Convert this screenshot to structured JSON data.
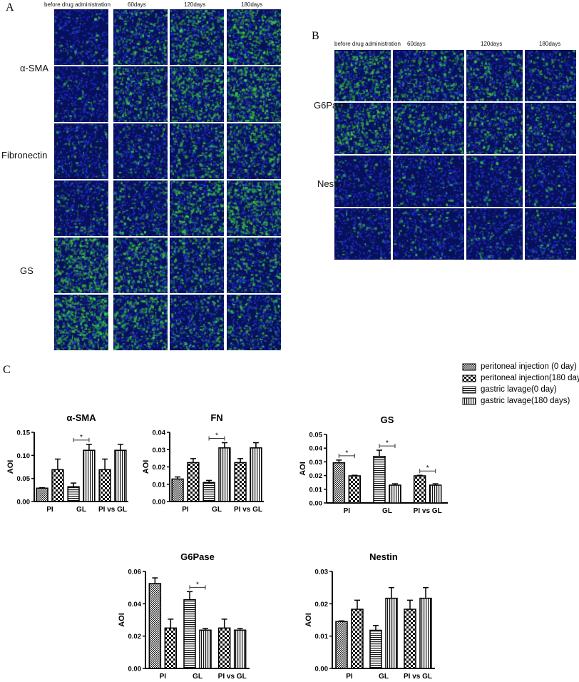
{
  "panelA": {
    "letter": "A",
    "columns": [
      "before drug administration",
      "60days",
      "120days",
      "180days"
    ],
    "rows": [
      "α-SMA",
      "Fibronectin",
      "GS"
    ],
    "green": [
      [
        0.1,
        0.4,
        0.6,
        0.7
      ],
      [
        0.1,
        0.45,
        0.65,
        0.75
      ],
      [
        0.15,
        0.2,
        0.45,
        0.5
      ],
      [
        0.2,
        0.3,
        0.6,
        0.8
      ],
      [
        0.85,
        0.6,
        0.45,
        0.4
      ],
      [
        0.9,
        0.6,
        0.35,
        0.4
      ]
    ]
  },
  "panelB": {
    "letter": "B",
    "columns": [
      "before drug administration",
      "60days",
      "120days",
      "180days"
    ],
    "rows": [
      "G6Pase",
      "Nestin"
    ],
    "green": [
      [
        0.6,
        0.4,
        0.4,
        0.25
      ],
      [
        0.6,
        0.4,
        0.35,
        0.25
      ],
      [
        0.1,
        0.12,
        0.12,
        0.12
      ],
      [
        0.1,
        0.12,
        0.12,
        0.12
      ]
    ]
  },
  "panelC": {
    "letter": "C"
  },
  "legend": [
    {
      "label": "peritoneal injection (0 day)",
      "pattern": "fine-check"
    },
    {
      "label": "peritoneal injection(180 days)",
      "pattern": "coarse-check"
    },
    {
      "label": "gastric lavage(0 day)",
      "pattern": "horizontal"
    },
    {
      "label": "gastric lavage(180 days)",
      "pattern": "vertical"
    }
  ],
  "chart_data": [
    {
      "type": "bar",
      "title": "α-SMA",
      "ylabel": "AOI",
      "ylim": [
        0,
        0.15
      ],
      "yticks": [
        "0.00",
        "0.05",
        "0.10",
        "0.15"
      ],
      "categories": [
        "PI",
        "GL",
        "PI vs GL"
      ],
      "groups": [
        [
          {
            "series": 0,
            "value": 0.029,
            "error": 0.001
          },
          {
            "series": 1,
            "value": 0.069,
            "error": 0.023
          }
        ],
        [
          {
            "series": 2,
            "value": 0.032,
            "error": 0.008
          },
          {
            "series": 3,
            "value": 0.111,
            "error": 0.013
          }
        ],
        [
          {
            "series": 1,
            "value": 0.069,
            "error": 0.023
          },
          {
            "series": 3,
            "value": 0.111,
            "error": 0.013
          }
        ]
      ],
      "significance": [
        {
          "group": 1,
          "label": "*"
        }
      ]
    },
    {
      "type": "bar",
      "title": "FN",
      "ylabel": "AOI",
      "ylim": [
        0,
        0.04
      ],
      "yticks": [
        "0.00",
        "0.01",
        "0.02",
        "0.03",
        "0.04"
      ],
      "categories": [
        "PI",
        "GL",
        "PI vs GL"
      ],
      "groups": [
        [
          {
            "series": 0,
            "value": 0.013,
            "error": 0.0012
          },
          {
            "series": 1,
            "value": 0.0225,
            "error": 0.0023
          }
        ],
        [
          {
            "series": 2,
            "value": 0.011,
            "error": 0.0012
          },
          {
            "series": 3,
            "value": 0.031,
            "error": 0.003
          }
        ],
        [
          {
            "series": 1,
            "value": 0.0225,
            "error": 0.0023
          },
          {
            "series": 3,
            "value": 0.031,
            "error": 0.003
          }
        ]
      ],
      "significance": [
        {
          "group": 1,
          "label": "*"
        }
      ]
    },
    {
      "type": "bar",
      "title": "GS",
      "ylabel": "AOI",
      "ylim": [
        0,
        0.05
      ],
      "yticks": [
        "0.00",
        "0.01",
        "0.02",
        "0.03",
        "0.04",
        "0.05"
      ],
      "categories": [
        "PI",
        "GL",
        "PI vs GL"
      ],
      "groups": [
        [
          {
            "series": 0,
            "value": 0.0293,
            "error": 0.002
          },
          {
            "series": 1,
            "value": 0.0198,
            "error": 0.0004
          }
        ],
        [
          {
            "series": 2,
            "value": 0.034,
            "error": 0.0045
          },
          {
            "series": 3,
            "value": 0.013,
            "error": 0.001
          }
        ],
        [
          {
            "series": 1,
            "value": 0.0198,
            "error": 0.0004
          },
          {
            "series": 3,
            "value": 0.013,
            "error": 0.001
          }
        ]
      ],
      "significance": [
        {
          "group": 0,
          "label": "*"
        },
        {
          "group": 1,
          "label": "*"
        },
        {
          "group": 2,
          "label": "*"
        }
      ]
    },
    {
      "type": "bar",
      "title": "G6Pase",
      "ylabel": "AOI",
      "ylim": [
        0,
        0.06
      ],
      "yticks": [
        "0.00",
        "0.02",
        "0.04",
        "0.06"
      ],
      "categories": [
        "PI",
        "GL",
        "PI vs GL"
      ],
      "groups": [
        [
          {
            "series": 0,
            "value": 0.0525,
            "error": 0.0035
          },
          {
            "series": 1,
            "value": 0.025,
            "error": 0.0055
          }
        ],
        [
          {
            "series": 2,
            "value": 0.0425,
            "error": 0.005
          },
          {
            "series": 3,
            "value": 0.0237,
            "error": 0.001
          }
        ],
        [
          {
            "series": 1,
            "value": 0.025,
            "error": 0.0055
          },
          {
            "series": 3,
            "value": 0.0237,
            "error": 0.001
          }
        ]
      ],
      "significance": [
        {
          "group": 1,
          "label": "*"
        }
      ]
    },
    {
      "type": "bar",
      "title": "Nestin",
      "ylabel": "AOI",
      "ylim": [
        0,
        0.03
      ],
      "yticks": [
        "0.00",
        "0.01",
        "0.02",
        "0.03"
      ],
      "categories": [
        "PI",
        "GL",
        "PI vs GL"
      ],
      "groups": [
        [
          {
            "series": 0,
            "value": 0.0145,
            "error": 0.0002
          },
          {
            "series": 1,
            "value": 0.0183,
            "error": 0.0028
          }
        ],
        [
          {
            "series": 2,
            "value": 0.0118,
            "error": 0.0015
          },
          {
            "series": 3,
            "value": 0.0217,
            "error": 0.0033
          }
        ],
        [
          {
            "series": 1,
            "value": 0.0183,
            "error": 0.0028
          },
          {
            "series": 3,
            "value": 0.0217,
            "error": 0.0033
          }
        ]
      ],
      "significance": []
    }
  ]
}
